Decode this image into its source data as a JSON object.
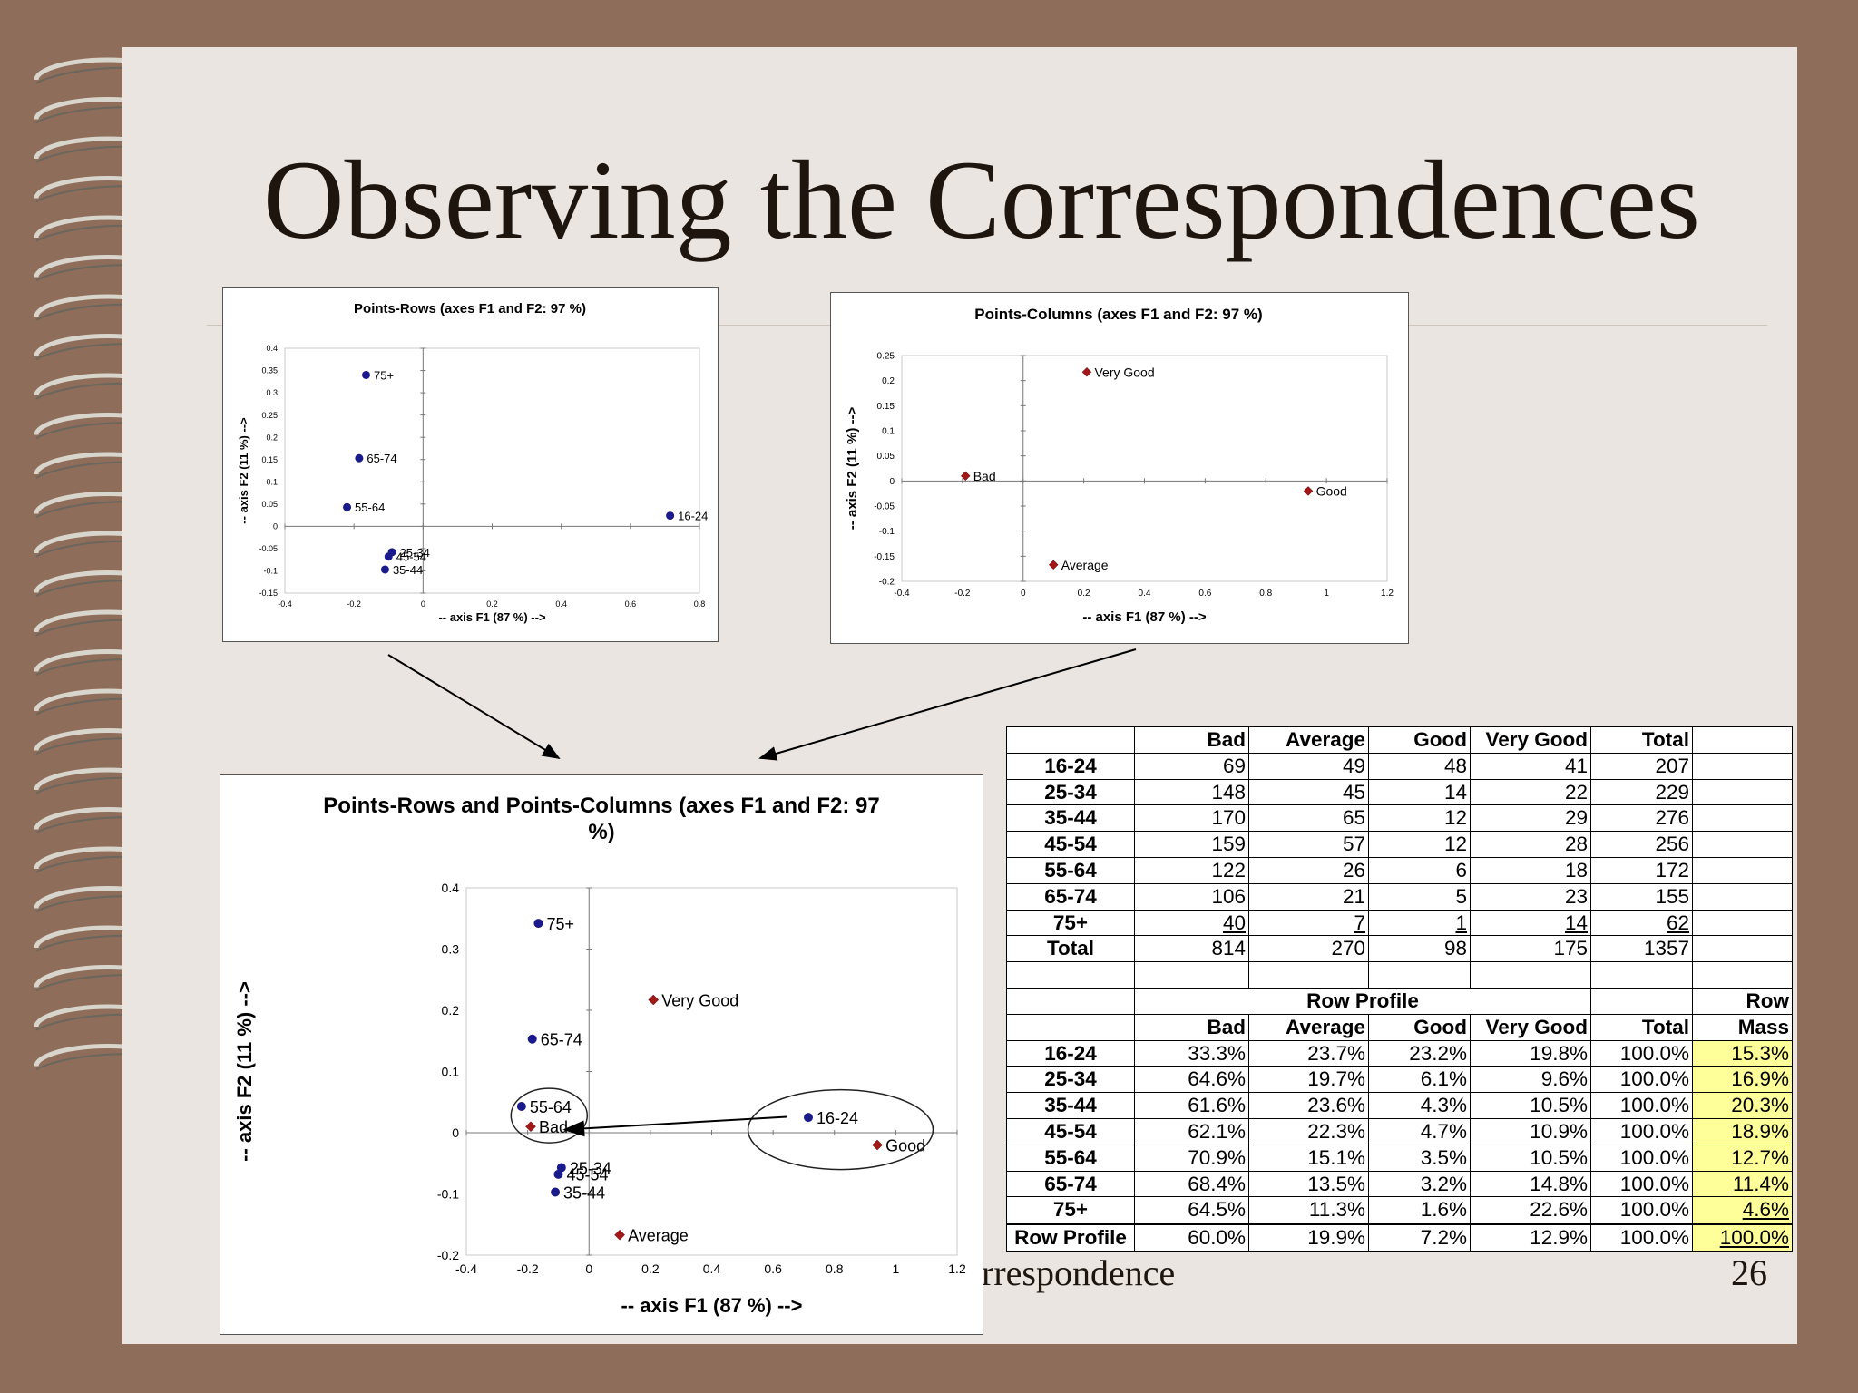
{
  "slide": {
    "title": "Observing the Correspondences",
    "footer": "rrespondence",
    "page_number": "26"
  },
  "colors": {
    "background": "#8f6d5b",
    "page": "#ebe5e1",
    "row_points": "#1a1a8c",
    "column_points": "#a01818",
    "mass_highlight": "#ffff99"
  },
  "chart_data": [
    {
      "type": "scatter",
      "title": "Points-Rows  (axes F1 and F2: 97 %)",
      "xlabel": "-- axis F1 (87 %) -->",
      "ylabel": "-- axis F2 (11 %) -->",
      "xlim": [
        -0.4,
        0.8
      ],
      "ylim": [
        -0.15,
        0.4
      ],
      "xticks": [
        -0.4,
        -0.2,
        0,
        0.2,
        0.4,
        0.6,
        0.8
      ],
      "yticks": [
        -0.15,
        -0.1,
        -0.05,
        0,
        0.05,
        0.1,
        0.15,
        0.2,
        0.25,
        0.3,
        0.35,
        0.4
      ],
      "points": [
        {
          "label": "75+",
          "x": -0.165,
          "y": 0.34
        },
        {
          "label": "65-74",
          "x": -0.185,
          "y": 0.153
        },
        {
          "label": "55-64",
          "x": -0.22,
          "y": 0.043
        },
        {
          "label": "16-24",
          "x": 0.715,
          "y": 0.024
        },
        {
          "label": "25-34",
          "x": -0.09,
          "y": -0.058
        },
        {
          "label": "45-54",
          "x": -0.1,
          "y": -0.068
        },
        {
          "label": "35-44",
          "x": -0.11,
          "y": -0.097
        }
      ]
    },
    {
      "type": "scatter",
      "title": "Points-Columns (axes F1 and F2: 97 %)",
      "xlabel": "-- axis F1 (87 %) -->",
      "ylabel": "-- axis F2 (11 %) -->",
      "xlim": [
        -0.4,
        1.2
      ],
      "ylim": [
        -0.2,
        0.25
      ],
      "xticks": [
        -0.4,
        -0.2,
        0,
        0.2,
        0.4,
        0.6,
        0.8,
        1,
        1.2
      ],
      "yticks": [
        -0.2,
        -0.15,
        -0.1,
        -0.05,
        0,
        0.05,
        0.1,
        0.15,
        0.2,
        0.25
      ],
      "points": [
        {
          "label": "Very Good",
          "x": 0.21,
          "y": 0.217
        },
        {
          "label": "Bad",
          "x": -0.19,
          "y": 0.01
        },
        {
          "label": "Good",
          "x": 0.94,
          "y": -0.02
        },
        {
          "label": "Average",
          "x": 0.1,
          "y": -0.167
        }
      ]
    },
    {
      "type": "scatter",
      "title": "Points-Rows and Points-Columns (axes F1 and F2: 97 %)",
      "xlabel": "-- axis F1 (87 %) -->",
      "ylabel": "-- axis F2 (11 %) -->",
      "xlim": [
        -0.4,
        1.2
      ],
      "ylim": [
        -0.2,
        0.4
      ],
      "xticks": [
        -0.4,
        -0.2,
        0,
        0.2,
        0.4,
        0.6,
        0.8,
        1,
        1.2
      ],
      "yticks": [
        -0.2,
        -0.1,
        0,
        0.1,
        0.2,
        0.3,
        0.4
      ],
      "rows": [
        {
          "label": "75+",
          "x": -0.165,
          "y": 0.342
        },
        {
          "label": "65-74",
          "x": -0.185,
          "y": 0.153
        },
        {
          "label": "55-64",
          "x": -0.22,
          "y": 0.043
        },
        {
          "label": "16-24",
          "x": 0.715,
          "y": 0.025
        },
        {
          "label": "25-34",
          "x": -0.09,
          "y": -0.057
        },
        {
          "label": "45-54",
          "x": -0.1,
          "y": -0.068
        },
        {
          "label": "35-44",
          "x": -0.11,
          "y": -0.097
        }
      ],
      "columns": [
        {
          "label": "Very Good",
          "x": 0.21,
          "y": 0.217
        },
        {
          "label": "Bad",
          "x": -0.19,
          "y": 0.01
        },
        {
          "label": "Good",
          "x": 0.94,
          "y": -0.02
        },
        {
          "label": "Average",
          "x": 0.1,
          "y": -0.167
        }
      ]
    },
    {
      "type": "table",
      "columns": [
        "Bad",
        "Average",
        "Good",
        "Very Good",
        "Total"
      ],
      "counts": [
        {
          "label": "16-24",
          "values": [
            "69",
            "49",
            "48",
            "41",
            "207"
          ]
        },
        {
          "label": "25-34",
          "values": [
            "148",
            "45",
            "14",
            "22",
            "229"
          ]
        },
        {
          "label": "35-44",
          "values": [
            "170",
            "65",
            "12",
            "29",
            "276"
          ]
        },
        {
          "label": "45-54",
          "values": [
            "159",
            "57",
            "12",
            "28",
            "256"
          ]
        },
        {
          "label": "55-64",
          "values": [
            "122",
            "26",
            "6",
            "18",
            "172"
          ]
        },
        {
          "label": "65-74",
          "values": [
            "106",
            "21",
            "5",
            "23",
            "155"
          ]
        },
        {
          "label": "75+",
          "values": [
            "40",
            "7",
            "1",
            "14",
            "62"
          ]
        },
        {
          "label": "Total",
          "values": [
            "814",
            "270",
            "98",
            "175",
            "1357"
          ]
        }
      ],
      "profile_header": "Row Profile",
      "mass_header_1": "Row",
      "mass_header_2": "Mass",
      "profile_columns": [
        "Bad",
        "Average",
        "Good",
        "Very Good",
        "Total"
      ],
      "profiles": [
        {
          "label": "16-24",
          "values": [
            "33.3%",
            "23.7%",
            "23.2%",
            "19.8%",
            "100.0%"
          ],
          "mass": "15.3%"
        },
        {
          "label": "25-34",
          "values": [
            "64.6%",
            "19.7%",
            "6.1%",
            "9.6%",
            "100.0%"
          ],
          "mass": "16.9%"
        },
        {
          "label": "35-44",
          "values": [
            "61.6%",
            "23.6%",
            "4.3%",
            "10.5%",
            "100.0%"
          ],
          "mass": "20.3%"
        },
        {
          "label": "45-54",
          "values": [
            "62.1%",
            "22.3%",
            "4.7%",
            "10.9%",
            "100.0%"
          ],
          "mass": "18.9%"
        },
        {
          "label": "55-64",
          "values": [
            "70.9%",
            "15.1%",
            "3.5%",
            "10.5%",
            "100.0%"
          ],
          "mass": "12.7%"
        },
        {
          "label": "65-74",
          "values": [
            "68.4%",
            "13.5%",
            "3.2%",
            "14.8%",
            "100.0%"
          ],
          "mass": "11.4%"
        },
        {
          "label": "75+",
          "values": [
            "64.5%",
            "11.3%",
            "1.6%",
            "22.6%",
            "100.0%"
          ],
          "mass": "4.6%"
        },
        {
          "label": "Row Profile",
          "values": [
            "60.0%",
            "19.9%",
            "7.2%",
            "12.9%",
            "100.0%"
          ],
          "mass": "100.0%"
        }
      ]
    }
  ]
}
